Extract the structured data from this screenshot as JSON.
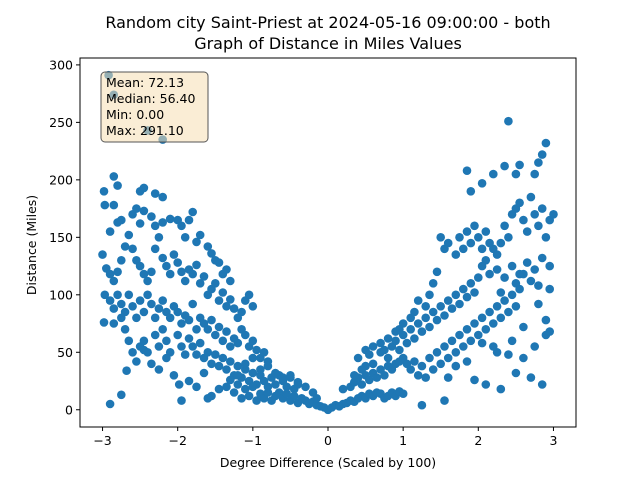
{
  "chart_data": {
    "type": "scatter",
    "title_lines": [
      "Random city Saint-Priest at 2024-05-16 09:00:00  - both",
      "Graph of Distance in Miles Values"
    ],
    "xlabel": "Degree Difference (Scaled by 100)",
    "ylabel": "Distance (Miles)",
    "xlim": [
      -3.3,
      3.3
    ],
    "ylim": [
      -15,
      306
    ],
    "x_ticks": [
      -3,
      -2,
      -1,
      0,
      1,
      2,
      3
    ],
    "x_tick_labels": [
      "−3",
      "−2",
      "−1",
      "0",
      "1",
      "2",
      "3"
    ],
    "y_ticks": [
      0,
      50,
      100,
      150,
      200,
      250,
      300
    ],
    "y_tick_labels": [
      "0",
      "50",
      "100",
      "150",
      "200",
      "250",
      "300"
    ],
    "grid": false,
    "marker_color": "#1f77b4",
    "stats_box": {
      "lines": [
        "Mean: 72.13",
        "Median: 56.40",
        "Min: 0.00",
        "Max: 291.10"
      ],
      "placement": "top-left",
      "background": "#f5deb3",
      "border": "#555555"
    },
    "points": [
      [
        -2.92,
        291
      ],
      [
        -2.85,
        274
      ],
      [
        -2.4,
        243
      ],
      [
        -2.2,
        235
      ],
      [
        -2.98,
        190
      ],
      [
        -2.85,
        203
      ],
      [
        -2.8,
        195
      ],
      [
        -2.5,
        190
      ],
      [
        -2.45,
        193
      ],
      [
        -2.3,
        188
      ],
      [
        -2.2,
        185
      ],
      [
        -2.97,
        178
      ],
      [
        -2.85,
        178
      ],
      [
        -2.9,
        155
      ],
      [
        -2.8,
        163
      ],
      [
        -2.75,
        165
      ],
      [
        -2.6,
        170
      ],
      [
        -2.55,
        175
      ],
      [
        -2.5,
        162
      ],
      [
        -2.45,
        173
      ],
      [
        -2.35,
        168
      ],
      [
        -2.3,
        160
      ],
      [
        -2.2,
        163
      ],
      [
        -2.1,
        166
      ],
      [
        -2.0,
        165
      ],
      [
        -1.95,
        160
      ],
      [
        -1.85,
        165
      ],
      [
        -1.8,
        172
      ],
      [
        -1.9,
        150
      ],
      [
        -1.75,
        146
      ],
      [
        -1.7,
        152
      ],
      [
        -1.6,
        142
      ],
      [
        -1.55,
        136
      ],
      [
        -1.5,
        130
      ],
      [
        -1.45,
        128
      ],
      [
        -1.4,
        118
      ],
      [
        -1.35,
        122
      ],
      [
        -1.3,
        112
      ],
      [
        -3.0,
        135
      ],
      [
        -2.95,
        123
      ],
      [
        -2.9,
        118
      ],
      [
        -2.85,
        112
      ],
      [
        -2.8,
        120
      ],
      [
        -2.75,
        130
      ],
      [
        -2.7,
        142
      ],
      [
        -2.65,
        152
      ],
      [
        -2.6,
        140
      ],
      [
        -2.55,
        130
      ],
      [
        -2.5,
        125
      ],
      [
        -2.45,
        118
      ],
      [
        -2.4,
        112
      ],
      [
        -2.35,
        120
      ],
      [
        -2.3,
        140
      ],
      [
        -2.25,
        150
      ],
      [
        -2.2,
        132
      ],
      [
        -2.15,
        125
      ],
      [
        -2.1,
        118
      ],
      [
        -2.05,
        135
      ],
      [
        -2.0,
        128
      ],
      [
        -1.95,
        120
      ],
      [
        -1.9,
        112
      ],
      [
        -1.85,
        122
      ],
      [
        -1.8,
        118
      ],
      [
        -1.75,
        126
      ],
      [
        -1.7,
        110
      ],
      [
        -1.65,
        116
      ],
      [
        -1.6,
        100
      ],
      [
        -1.55,
        105
      ],
      [
        -1.5,
        110
      ],
      [
        -1.45,
        95
      ],
      [
        -1.4,
        102
      ],
      [
        -1.35,
        90
      ],
      [
        -1.3,
        96
      ],
      [
        -1.25,
        88
      ],
      [
        -1.2,
        80
      ],
      [
        -1.15,
        85
      ],
      [
        -1.1,
        95
      ],
      [
        -1.05,
        100
      ],
      [
        -1.0,
        90
      ],
      [
        -2.97,
        100
      ],
      [
        -2.9,
        95
      ],
      [
        -2.85,
        88
      ],
      [
        -2.8,
        100
      ],
      [
        -2.75,
        92
      ],
      [
        -2.7,
        85
      ],
      [
        -2.65,
        100
      ],
      [
        -2.6,
        90
      ],
      [
        -2.55,
        80
      ],
      [
        -2.5,
        95
      ],
      [
        -2.45,
        85
      ],
      [
        -2.4,
        100
      ],
      [
        -2.35,
        92
      ],
      [
        -2.3,
        80
      ],
      [
        -2.25,
        88
      ],
      [
        -2.2,
        95
      ],
      [
        -2.15,
        85
      ],
      [
        -2.1,
        80
      ],
      [
        -2.05,
        90
      ],
      [
        -2.0,
        85
      ],
      [
        -1.95,
        75
      ],
      [
        -1.9,
        82
      ],
      [
        -1.85,
        78
      ],
      [
        -1.8,
        92
      ],
      [
        -1.75,
        70
      ],
      [
        -1.7,
        80
      ],
      [
        -1.65,
        75
      ],
      [
        -1.6,
        70
      ],
      [
        -1.55,
        78
      ],
      [
        -1.5,
        65
      ],
      [
        -1.45,
        72
      ],
      [
        -1.4,
        60
      ],
      [
        -1.35,
        68
      ],
      [
        -1.3,
        55
      ],
      [
        -1.25,
        62
      ],
      [
        -1.2,
        58
      ],
      [
        -1.15,
        70
      ],
      [
        -1.1,
        65
      ],
      [
        -1.05,
        55
      ],
      [
        -1.0,
        60
      ],
      [
        -0.95,
        52
      ],
      [
        -0.9,
        45
      ],
      [
        -0.85,
        50
      ],
      [
        -0.8,
        42
      ],
      [
        -2.98,
        76
      ],
      [
        -2.85,
        75
      ],
      [
        -2.75,
        80
      ],
      [
        -2.7,
        70
      ],
      [
        -2.65,
        60
      ],
      [
        -2.6,
        50
      ],
      [
        -2.5,
        55
      ],
      [
        -2.45,
        60
      ],
      [
        -2.4,
        50
      ],
      [
        -2.3,
        65
      ],
      [
        -2.25,
        55
      ],
      [
        -2.2,
        70
      ],
      [
        -2.15,
        60
      ],
      [
        -2.1,
        50
      ],
      [
        -2.0,
        65
      ],
      [
        -1.95,
        55
      ],
      [
        -1.9,
        48
      ],
      [
        -1.85,
        62
      ],
      [
        -1.8,
        55
      ],
      [
        -1.75,
        48
      ],
      [
        -1.7,
        58
      ],
      [
        -1.65,
        45
      ],
      [
        -1.6,
        50
      ],
      [
        -1.55,
        40
      ],
      [
        -1.5,
        48
      ],
      [
        -1.45,
        38
      ],
      [
        -1.4,
        45
      ],
      [
        -1.35,
        35
      ],
      [
        -1.3,
        42
      ],
      [
        -1.25,
        30
      ],
      [
        -1.2,
        38
      ],
      [
        -1.15,
        28
      ],
      [
        -1.1,
        35
      ],
      [
        -1.05,
        25
      ],
      [
        -1.0,
        32
      ],
      [
        -0.95,
        22
      ],
      [
        -0.9,
        30
      ],
      [
        -0.85,
        25
      ],
      [
        -0.8,
        20
      ],
      [
        -0.75,
        28
      ],
      [
        -0.7,
        22
      ],
      [
        -0.65,
        30
      ],
      [
        -0.6,
        25
      ],
      [
        -0.55,
        20
      ],
      [
        -0.5,
        28
      ],
      [
        -0.45,
        18
      ],
      [
        -0.4,
        22
      ],
      [
        -2.9,
        5
      ],
      [
        -2.75,
        13
      ],
      [
        -2.68,
        34
      ],
      [
        -2.55,
        42
      ],
      [
        -2.45,
        52
      ],
      [
        -2.35,
        40
      ],
      [
        -2.25,
        35
      ],
      [
        -2.15,
        45
      ],
      [
        -2.05,
        30
      ],
      [
        -1.98,
        22
      ],
      [
        -1.95,
        8
      ],
      [
        -1.85,
        25
      ],
      [
        -1.75,
        20
      ],
      [
        -1.65,
        32
      ],
      [
        -1.6,
        10
      ],
      [
        -1.55,
        12
      ],
      [
        -1.45,
        18
      ],
      [
        -1.35,
        20
      ],
      [
        -1.3,
        26
      ],
      [
        -1.25,
        15
      ],
      [
        -1.2,
        22
      ],
      [
        -1.15,
        10
      ],
      [
        -1.1,
        18
      ],
      [
        -1.05,
        12
      ],
      [
        -1.0,
        20
      ],
      [
        -0.95,
        8
      ],
      [
        -0.9,
        14
      ],
      [
        -0.85,
        10
      ],
      [
        -0.8,
        15
      ],
      [
        -0.75,
        8
      ],
      [
        -0.7,
        12
      ],
      [
        -0.65,
        15
      ],
      [
        -0.6,
        10
      ],
      [
        -0.55,
        14
      ],
      [
        -0.5,
        8
      ],
      [
        -0.45,
        12
      ],
      [
        -0.4,
        6
      ],
      [
        -0.35,
        10
      ],
      [
        -0.3,
        8
      ],
      [
        -0.25,
        5
      ],
      [
        -0.2,
        7
      ],
      [
        -0.15,
        4
      ],
      [
        -0.1,
        3
      ],
      [
        -0.05,
        2
      ],
      [
        0.0,
        0
      ],
      [
        0.05,
        2
      ],
      [
        0.1,
        4
      ],
      [
        0.15,
        3
      ],
      [
        0.2,
        5
      ],
      [
        0.25,
        6
      ],
      [
        0.3,
        8
      ],
      [
        0.35,
        7
      ],
      [
        0.4,
        10
      ],
      [
        0.45,
        12
      ],
      [
        0.5,
        10
      ],
      [
        0.55,
        14
      ],
      [
        0.6,
        12
      ],
      [
        0.65,
        15
      ],
      [
        0.7,
        14
      ],
      [
        0.75,
        10
      ],
      [
        0.8,
        12
      ],
      [
        0.85,
        15
      ],
      [
        0.9,
        12
      ],
      [
        0.95,
        16
      ],
      [
        1.0,
        14
      ],
      [
        -1.2,
        30
      ],
      [
        -1.1,
        40
      ],
      [
        -1.0,
        45
      ],
      [
        -0.9,
        35
      ],
      [
        -0.8,
        38
      ],
      [
        -0.7,
        32
      ],
      [
        -0.6,
        28
      ],
      [
        -0.5,
        30
      ],
      [
        -0.4,
        24
      ],
      [
        -0.3,
        20
      ],
      [
        -0.2,
        15
      ],
      [
        -0.15,
        10
      ],
      [
        0.2,
        18
      ],
      [
        0.3,
        20
      ],
      [
        0.35,
        24
      ],
      [
        0.4,
        28
      ],
      [
        0.45,
        22
      ],
      [
        0.5,
        30
      ],
      [
        0.55,
        26
      ],
      [
        0.6,
        32
      ],
      [
        0.65,
        28
      ],
      [
        0.7,
        35
      ],
      [
        0.75,
        30
      ],
      [
        0.8,
        38
      ],
      [
        0.85,
        35
      ],
      [
        0.9,
        40
      ],
      [
        0.95,
        42
      ],
      [
        1.0,
        45
      ],
      [
        0.4,
        45
      ],
      [
        0.5,
        52
      ],
      [
        0.55,
        48
      ],
      [
        0.6,
        55
      ],
      [
        0.7,
        50
      ],
      [
        0.75,
        52
      ],
      [
        0.8,
        45
      ],
      [
        0.85,
        55
      ],
      [
        0.9,
        60
      ],
      [
        0.95,
        52
      ],
      [
        1.0,
        65
      ],
      [
        1.05,
        58
      ],
      [
        1.1,
        70
      ],
      [
        1.15,
        62
      ],
      [
        1.2,
        75
      ],
      [
        1.25,
        68
      ],
      [
        1.3,
        80
      ],
      [
        1.35,
        72
      ],
      [
        1.4,
        85
      ],
      [
        1.45,
        78
      ],
      [
        1.5,
        90
      ],
      [
        1.55,
        82
      ],
      [
        1.6,
        95
      ],
      [
        1.65,
        88
      ],
      [
        1.7,
        100
      ],
      [
        1.75,
        92
      ],
      [
        1.8,
        105
      ],
      [
        1.85,
        98
      ],
      [
        1.9,
        110
      ],
      [
        1.95,
        102
      ],
      [
        2.0,
        115
      ],
      [
        1.05,
        40
      ],
      [
        1.1,
        35
      ],
      [
        1.15,
        42
      ],
      [
        1.2,
        30
      ],
      [
        1.25,
        38
      ],
      [
        1.3,
        28
      ],
      [
        1.35,
        45
      ],
      [
        1.4,
        35
      ],
      [
        1.45,
        50
      ],
      [
        1.5,
        40
      ],
      [
        1.55,
        55
      ],
      [
        1.6,
        45
      ],
      [
        1.65,
        60
      ],
      [
        1.7,
        50
      ],
      [
        1.75,
        65
      ],
      [
        1.8,
        55
      ],
      [
        1.85,
        70
      ],
      [
        1.9,
        60
      ],
      [
        1.95,
        75
      ],
      [
        2.0,
        65
      ],
      [
        2.05,
        80
      ],
      [
        2.1,
        70
      ],
      [
        2.15,
        85
      ],
      [
        2.2,
        75
      ],
      [
        2.25,
        90
      ],
      [
        2.3,
        80
      ],
      [
        2.35,
        95
      ],
      [
        2.4,
        85
      ],
      [
        2.45,
        100
      ],
      [
        2.5,
        90
      ],
      [
        2.55,
        105
      ],
      [
        1.25,
        4
      ],
      [
        1.55,
        8
      ],
      [
        1.95,
        26
      ],
      [
        2.1,
        22
      ],
      [
        2.3,
        18
      ],
      [
        2.5,
        32
      ],
      [
        2.7,
        28
      ],
      [
        2.85,
        22
      ],
      [
        2.25,
        50
      ],
      [
        2.4,
        48
      ],
      [
        2.6,
        45
      ],
      [
        2.75,
        55
      ],
      [
        2.9,
        65
      ],
      [
        2.95,
        68
      ],
      [
        2.1,
        130
      ],
      [
        2.2,
        140
      ],
      [
        2.3,
        145
      ],
      [
        2.35,
        160
      ],
      [
        2.4,
        150
      ],
      [
        2.45,
        170
      ],
      [
        2.5,
        175
      ],
      [
        2.55,
        180
      ],
      [
        2.6,
        165
      ],
      [
        2.65,
        155
      ],
      [
        2.7,
        185
      ],
      [
        2.75,
        170
      ],
      [
        2.8,
        160
      ],
      [
        2.85,
        175
      ],
      [
        2.9,
        150
      ],
      [
        2.95,
        165
      ],
      [
        3.0,
        170
      ],
      [
        2.75,
        205
      ],
      [
        2.8,
        215
      ],
      [
        2.85,
        222
      ],
      [
        2.9,
        232
      ],
      [
        2.5,
        205
      ],
      [
        2.55,
        213
      ],
      [
        2.35,
        212
      ],
      [
        2.2,
        205
      ],
      [
        2.05,
        197
      ],
      [
        1.9,
        190
      ],
      [
        1.85,
        208
      ],
      [
        1.5,
        150
      ],
      [
        1.55,
        140
      ],
      [
        1.6,
        145
      ],
      [
        1.7,
        135
      ],
      [
        1.75,
        150
      ],
      [
        1.8,
        140
      ],
      [
        1.85,
        155
      ],
      [
        1.9,
        145
      ],
      [
        1.95,
        160
      ],
      [
        2.0,
        150
      ],
      [
        2.05,
        140
      ],
      [
        2.1,
        155
      ],
      [
        2.15,
        145
      ],
      [
        2.25,
        135
      ],
      [
        2.4,
        251
      ],
      [
        2.05,
        125
      ],
      [
        2.15,
        118
      ],
      [
        2.25,
        122
      ],
      [
        2.35,
        115
      ],
      [
        2.45,
        125
      ],
      [
        2.55,
        118
      ],
      [
        2.65,
        128
      ],
      [
        2.75,
        122
      ],
      [
        2.85,
        132
      ],
      [
        2.95,
        125
      ],
      [
        2.9,
        78
      ],
      [
        2.95,
        105
      ],
      [
        2.8,
        92
      ],
      [
        2.6,
        72
      ],
      [
        2.45,
        60
      ],
      [
        2.2,
        55
      ],
      [
        2.05,
        58
      ],
      [
        1.85,
        42
      ],
      [
        1.7,
        38
      ],
      [
        1.6,
        28
      ],
      [
        2.3,
        102
      ],
      [
        2.5,
        110
      ],
      [
        2.6,
        118
      ],
      [
        2.7,
        112
      ],
      [
        2.8,
        108
      ],
      [
        1.4,
        110
      ],
      [
        1.45,
        120
      ],
      [
        1.35,
        100
      ],
      [
        1.3,
        90
      ],
      [
        1.2,
        95
      ],
      [
        1.15,
        85
      ],
      [
        1.1,
        80
      ],
      [
        1.0,
        75
      ],
      [
        0.95,
        70
      ],
      [
        0.9,
        68
      ],
      [
        0.8,
        62
      ],
      [
        0.7,
        58
      ],
      [
        0.6,
        40
      ],
      [
        0.5,
        38
      ],
      [
        0.45,
        35
      ],
      [
        0.35,
        30
      ]
    ]
  }
}
